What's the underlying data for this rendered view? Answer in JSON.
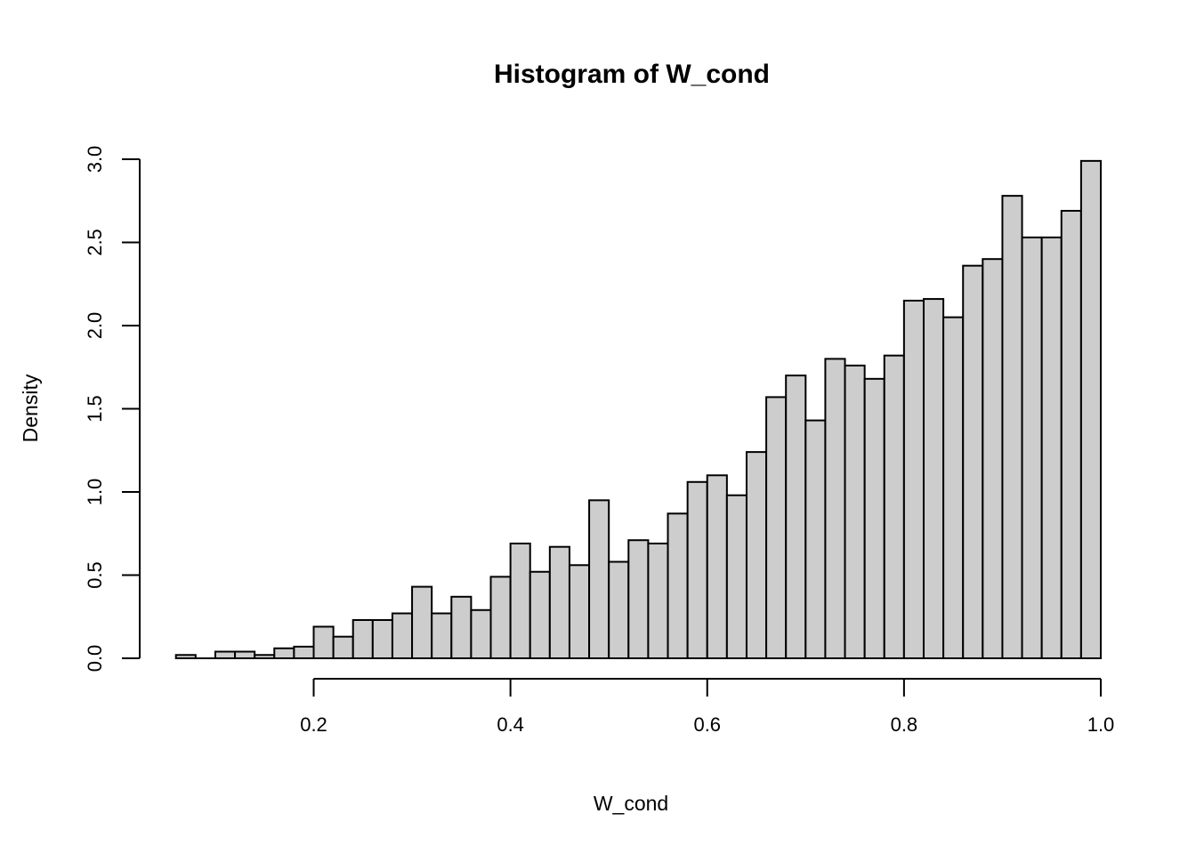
{
  "chart_data": {
    "type": "bar",
    "subtype": "histogram",
    "title": "Histogram of W_cond",
    "xlabel": "W_cond",
    "ylabel": "Density",
    "bin_start": 0.06,
    "bin_width": 0.02,
    "densities": [
      0.02,
      0.0,
      0.04,
      0.04,
      0.02,
      0.06,
      0.07,
      0.19,
      0.13,
      0.23,
      0.23,
      0.27,
      0.43,
      0.27,
      0.37,
      0.29,
      0.49,
      0.69,
      0.52,
      0.67,
      0.56,
      0.95,
      0.58,
      0.71,
      0.69,
      0.87,
      1.06,
      1.1,
      0.98,
      1.24,
      1.57,
      1.7,
      1.43,
      1.8,
      1.76,
      1.68,
      1.82,
      2.15,
      2.16,
      2.05,
      2.36,
      2.4,
      2.78,
      2.53,
      2.53,
      2.69,
      2.99
    ],
    "x_ticks": [
      0.2,
      0.4,
      0.6,
      0.8,
      1.0
    ],
    "x_tick_labels": [
      "0.2",
      "0.4",
      "0.6",
      "0.8",
      "1.0"
    ],
    "y_ticks": [
      0.0,
      0.5,
      1.0,
      1.5,
      2.0,
      2.5,
      3.0
    ],
    "y_tick_labels": [
      "0.0",
      "0.5",
      "1.0",
      "1.5",
      "2.0",
      "2.5",
      "3.0"
    ],
    "xlim": [
      0.023,
      1.0
    ],
    "ylim": [
      0.0,
      3.0
    ],
    "grid": false,
    "legend": "none",
    "colors": {
      "bar_fill": "#cdcdcd",
      "bar_stroke": "#000000",
      "axis": "#000000",
      "background": "#ffffff"
    }
  }
}
